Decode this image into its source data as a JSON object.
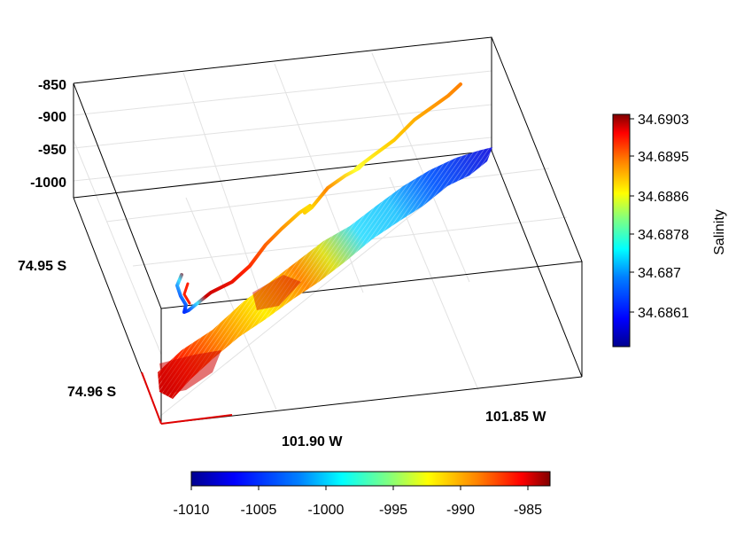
{
  "chart_data": {
    "type": "scatter",
    "title": "",
    "depth_axis": {
      "ticks": [
        "-850",
        "-900",
        "-950",
        "-1000"
      ]
    },
    "latitude_axis": {
      "ticks": [
        "74.95 S",
        "74.96 S"
      ]
    },
    "longitude_axis": {
      "ticks": [
        "101.90 W",
        "101.85 W"
      ]
    },
    "salinity_colorbar": {
      "label": "Salinity",
      "ticks": [
        "34.6903",
        "34.6895",
        "34.6886",
        "34.6878",
        "34.687",
        "34.6861"
      ]
    },
    "depth_colorbar": {
      "ticks": [
        "-1010",
        "-1005",
        "-1000",
        "-995",
        "-990",
        "-985"
      ]
    },
    "colormap": [
      "#00008f",
      "#0000ff",
      "#0080ff",
      "#00ffff",
      "#80ff80",
      "#ffff00",
      "#ff8000",
      "#ff0000",
      "#800000"
    ],
    "series": [
      {
        "kind": "vehicle-track",
        "salinity": [
          34.6865,
          34.6878,
          34.689,
          34.69,
          34.6895,
          34.689,
          34.6895,
          34.6888,
          34.6885,
          34.689,
          34.6886,
          34.6888,
          34.6889,
          34.6893,
          34.689,
          34.6895
        ]
      },
      {
        "kind": "seafloor-swath",
        "depth_along_track": [
          -984,
          -986,
          -990,
          -995,
          -999,
          -1002,
          -1006,
          -1010
        ]
      }
    ],
    "grid": true
  }
}
